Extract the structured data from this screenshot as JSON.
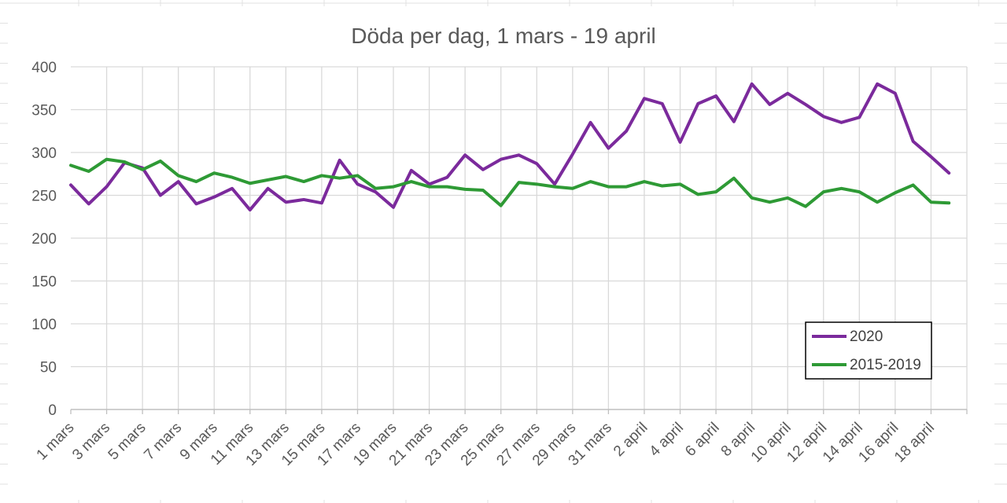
{
  "chart_data": {
    "type": "line",
    "title": "Döda per dag, 1 mars - 19 april",
    "xlabel": "",
    "ylabel": "",
    "ylim": [
      0,
      400
    ],
    "yticks": [
      0,
      50,
      100,
      150,
      200,
      250,
      300,
      350,
      400
    ],
    "grid": true,
    "legend_position": "bottom-right",
    "x": [
      "1 mars",
      "2 mars",
      "3 mars",
      "4 mars",
      "5 mars",
      "6 mars",
      "7 mars",
      "8 mars",
      "9 mars",
      "10 mars",
      "11 mars",
      "12 mars",
      "13 mars",
      "14 mars",
      "15 mars",
      "16 mars",
      "17 mars",
      "18 mars",
      "19 mars",
      "20 mars",
      "21 mars",
      "22 mars",
      "23 mars",
      "24 mars",
      "25 mars",
      "26 mars",
      "27 mars",
      "28 mars",
      "29 mars",
      "30 mars",
      "31 mars",
      "1 april",
      "2 april",
      "3 april",
      "4 april",
      "5 april",
      "6 april",
      "7 april",
      "8 april",
      "9 april",
      "10 april",
      "11 april",
      "12 april",
      "13 april",
      "14 april",
      "15 april",
      "16 april",
      "17 april",
      "18 april",
      "19 april"
    ],
    "xtick_labels": [
      "1 mars",
      "3 mars",
      "5 mars",
      "7 mars",
      "9 mars",
      "11 mars",
      "13 mars",
      "15 mars",
      "17 mars",
      "19 mars",
      "21 mars",
      "23 mars",
      "25 mars",
      "27 mars",
      "29 mars",
      "31 mars",
      "2 april",
      "4 april",
      "6 april",
      "8 april",
      "10 april",
      "12 april",
      "14 april",
      "16 april",
      "18 april"
    ],
    "series": [
      {
        "name": "2020",
        "color": "#7b2a9c",
        "values": [
          262,
          240,
          260,
          288,
          282,
          250,
          266,
          240,
          248,
          258,
          233,
          258,
          242,
          245,
          241,
          291,
          263,
          254,
          236,
          279,
          263,
          271,
          297,
          280,
          292,
          297,
          287,
          263,
          298,
          335,
          305,
          325,
          363,
          357,
          312,
          357,
          366,
          336,
          380,
          356,
          369,
          356,
          342,
          335,
          341,
          380,
          369,
          313,
          295,
          276
        ]
      },
      {
        "name": "2015-2019",
        "color": "#2e9a35",
        "values": [
          285,
          278,
          292,
          289,
          280,
          290,
          273,
          266,
          276,
          271,
          264,
          268,
          272,
          266,
          273,
          270,
          273,
          258,
          260,
          266,
          260,
          260,
          257,
          256,
          238,
          265,
          263,
          260,
          258,
          266,
          260,
          260,
          266,
          261,
          263,
          251,
          254,
          270,
          247,
          242,
          247,
          237,
          254,
          258,
          254,
          242,
          253,
          262,
          242,
          241
        ]
      }
    ]
  }
}
